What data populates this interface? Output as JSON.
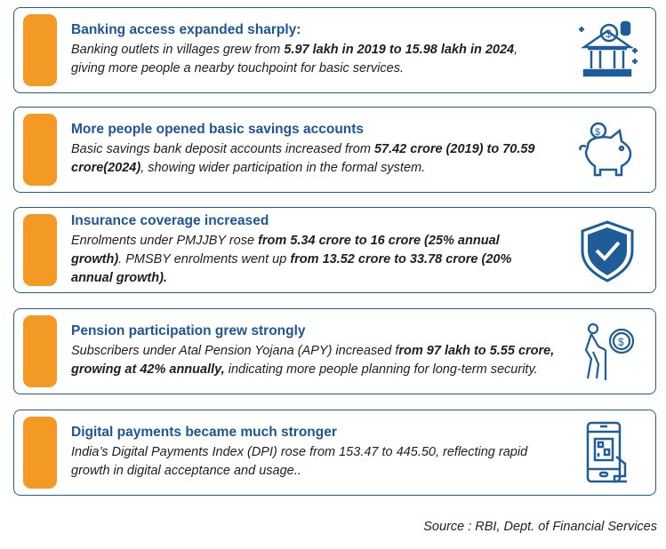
{
  "colors": {
    "accent": "#f39a24",
    "title": "#1d5596",
    "border": "#1f5d99",
    "icon": "#1f5d99"
  },
  "cards": [
    {
      "title": "Banking access expanded sharply:",
      "icon": "bank-icon",
      "body": [
        {
          "text": "Banking outlets in villages grew from ",
          "bold": false
        },
        {
          "text": "5.97 lakh in 2019 to 15.98 lakh in 2024",
          "bold": true
        },
        {
          "text": ", giving more people a nearby touchpoint for basic services.",
          "bold": false
        }
      ]
    },
    {
      "title": "More people opened basic savings accounts",
      "icon": "piggy-bank-icon",
      "body": [
        {
          "text": "Basic savings bank deposit accounts increased from ",
          "bold": false
        },
        {
          "text": "57.42 crore (2019) to 70.59 crore(2024)",
          "bold": true
        },
        {
          "text": ", showing wider participation in the formal system.",
          "bold": false
        }
      ]
    },
    {
      "title": "Insurance coverage increased",
      "icon": "shield-check-icon",
      "body": [
        {
          "text": "Enrolments under PMJJBY rose ",
          "bold": false
        },
        {
          "text": "from 5.34 crore to 16 crore (25% annual growth)",
          "bold": true
        },
        {
          "text": ". PMSBY enrolments went up ",
          "bold": false
        },
        {
          "text": "from 13.52 crore to 33.78 crore (20% annual growth).",
          "bold": true
        }
      ]
    },
    {
      "title": "Pension participation grew strongly",
      "icon": "elderly-pension-icon",
      "body": [
        {
          "text": "Subscribers under Atal Pension Yojana (APY) increased f",
          "bold": false
        },
        {
          "text": "rom 97 lakh to 5.55 crore, growing at 42% annually,",
          "bold": true
        },
        {
          "text": " indicating more people planning for long-term security.",
          "bold": false
        }
      ]
    },
    {
      "title": "Digital payments became much stronger",
      "icon": "mobile-qr-payment-icon",
      "body": [
        {
          "text": "India’s Digital Payments Index (DPI) rose from 153.47 to 445.50, reflecting rapid growth in digital acceptance and usage..",
          "bold": false
        }
      ]
    }
  ],
  "source": "Source : RBI, Dept. of Financial Services"
}
